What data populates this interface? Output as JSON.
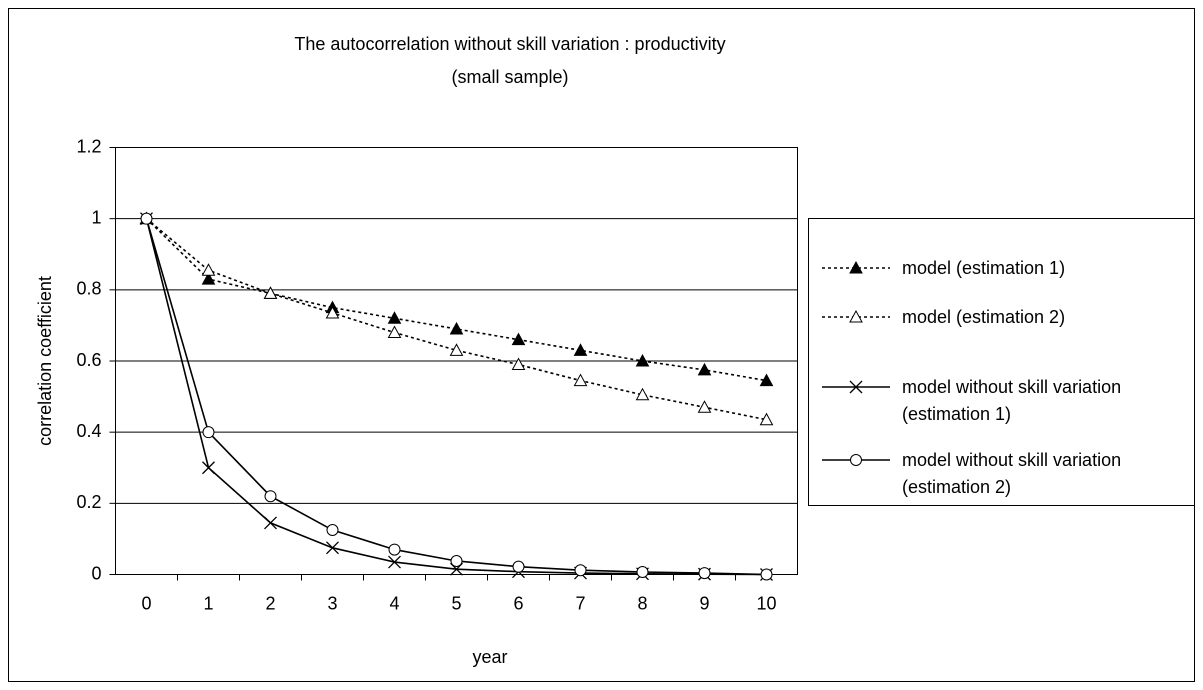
{
  "chart_data": {
    "type": "line",
    "title": "The autocorrelation without skill variation : productivity\n(small sample)",
    "x_label": "year",
    "y_label": "correlation coefficient",
    "x": [
      0,
      1,
      2,
      3,
      4,
      5,
      6,
      7,
      8,
      9,
      10
    ],
    "xlim": [
      -0.5,
      10.5
    ],
    "xticks": [
      0,
      1,
      2,
      3,
      4,
      5,
      6,
      7,
      8,
      9,
      10
    ],
    "ylim": [
      0,
      1.2
    ],
    "yticks": [
      0,
      0.2,
      0.4,
      0.6,
      0.8,
      1,
      1.2
    ],
    "grid": true,
    "legend": "right",
    "series": [
      {
        "name": "model (estimation 1)",
        "color": "#000000",
        "marker": "triangle-filled",
        "dashed": true,
        "values": [
          1,
          0.83,
          0.79,
          0.75,
          0.72,
          0.69,
          0.66,
          0.63,
          0.6,
          0.575,
          0.545
        ]
      },
      {
        "name": "model (estimation 2)",
        "color": "#000000",
        "marker": "triangle-open",
        "dashed": true,
        "values": [
          1,
          0.855,
          0.79,
          0.735,
          0.68,
          0.63,
          0.59,
          0.545,
          0.505,
          0.47,
          0.435
        ]
      },
      {
        "name": "model without skill variation\n(estimation 1)",
        "color": "#000000",
        "marker": "x",
        "dashed": false,
        "values": [
          1,
          0.3,
          0.145,
          0.075,
          0.035,
          0.015,
          0.008,
          0.004,
          0.002,
          0.001,
          0
        ]
      },
      {
        "name": "model without skill variation\n(estimation 2)",
        "color": "#000000",
        "marker": "circle",
        "dashed": false,
        "values": [
          1,
          0.4,
          0.22,
          0.125,
          0.07,
          0.038,
          0.022,
          0.012,
          0.007,
          0.004,
          0
        ]
      }
    ]
  }
}
